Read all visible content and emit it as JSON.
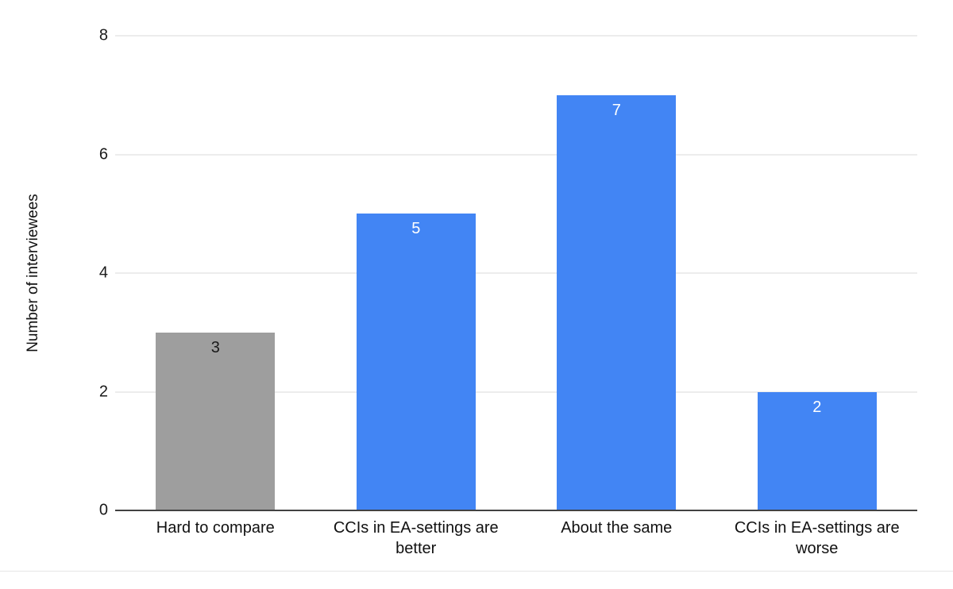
{
  "chart_data": {
    "type": "bar",
    "title": "",
    "xlabel": "",
    "ylabel": "Number of interviewees",
    "ylim": [
      0,
      8
    ],
    "yticks": [
      0,
      2,
      4,
      6,
      8
    ],
    "grid": true,
    "legend_position": "none",
    "categories": [
      "Hard to compare",
      "CCIs in EA-settings are better",
      "About the same",
      "CCIs in EA-settings are worse"
    ],
    "values": [
      3,
      5,
      7,
      2
    ],
    "bar_colors": [
      "#9e9e9e",
      "#4285f4",
      "#4285f4",
      "#4285f4"
    ],
    "value_label_colors": [
      "#1a1a1a",
      "#ffffff",
      "#ffffff",
      "#ffffff"
    ],
    "colors": {
      "bar_blue": "#4285f4",
      "bar_gray": "#9e9e9e",
      "gridline": "#d9d9d9",
      "axis": "#424242",
      "background": "#ffffff"
    }
  }
}
